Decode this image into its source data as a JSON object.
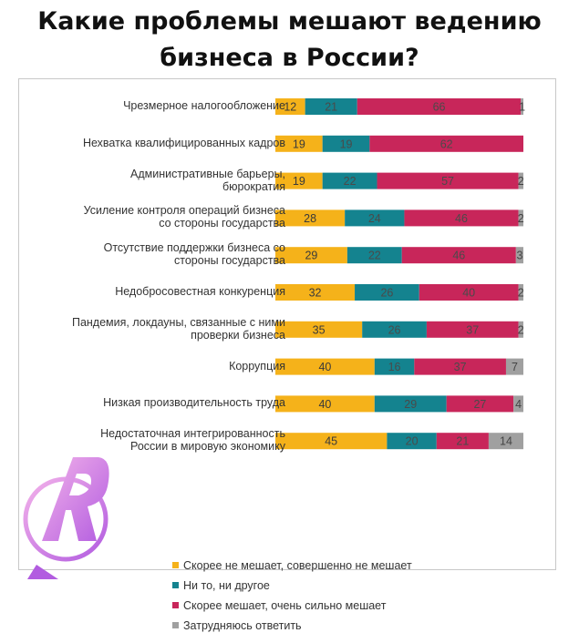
{
  "header": {
    "line1": "Какие проблемы мешают ведению",
    "line2": "бизнеса в России?"
  },
  "colors": {
    "favorable": "#f5b21a",
    "neutral": "#14838f",
    "unfavorable": "#c8265a",
    "unsure": "#a0a0a0"
  },
  "chart_data": {
    "type": "bar",
    "stacked": true,
    "orientation": "horizontal",
    "title": "Какие проблемы мешают ведению бизнеса в России?",
    "xlim": [
      0,
      100
    ],
    "categories": [
      [
        "Чрезмерное налогообложение"
      ],
      [
        "Нехватка квалифицированных кадров"
      ],
      [
        "Административные барьеры,",
        "бюрократия"
      ],
      [
        "Усиление контроля операций бизнеса",
        "со стороны государства"
      ],
      [
        "Отсутствие поддержки бизнеса со",
        "стороны государства"
      ],
      [
        "Недобросовестная конкуренция"
      ],
      [
        "Пандемия, локдауны, связанные с ними",
        "проверки бизнеса"
      ],
      [
        "Коррупция"
      ],
      [
        "Низкая производительность труда"
      ],
      [
        "Недостаточная интегрированность",
        "России в мировую экономику"
      ]
    ],
    "series": [
      {
        "name": "Скорее не мешает, совершенно не мешает",
        "values": [
          12,
          19,
          19,
          28,
          29,
          32,
          35,
          40,
          40,
          45
        ],
        "labels": [
          "12",
          "19",
          "19",
          "28",
          "29",
          "32",
          "35",
          "40",
          "40",
          "45"
        ]
      },
      {
        "name": "Ни то, ни другое",
        "values": [
          21,
          19,
          22,
          24,
          22,
          26,
          26,
          16,
          29,
          20
        ],
        "labels": [
          "21",
          "19",
          "22",
          "24",
          "22",
          "26",
          "26",
          "16",
          "29",
          "20"
        ]
      },
      {
        "name": "Скорее мешает, очень сильно мешает",
        "values": [
          66,
          62,
          57,
          46,
          46,
          40,
          37,
          37,
          27,
          21
        ],
        "labels": [
          "66",
          "62",
          "57",
          "46",
          "46",
          "40",
          "37",
          "37",
          "27",
          "21"
        ]
      },
      {
        "name": "Затрудняюсь ответить",
        "values": [
          1,
          0,
          2,
          2,
          3,
          2,
          2,
          7,
          4,
          14
        ],
        "labels": [
          "1",
          "",
          "2",
          "2",
          "3",
          "2",
          "2",
          "7",
          "4",
          "14"
        ]
      }
    ],
    "legend_position": "bottom"
  }
}
